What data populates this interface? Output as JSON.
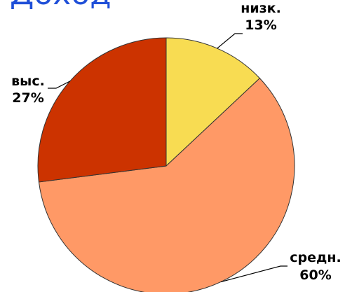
{
  "chart_data": {
    "type": "pie",
    "title": "Доход",
    "categories": [
      "низк.",
      "средн.",
      "выс."
    ],
    "values": [
      13,
      60,
      27
    ],
    "value_labels": [
      "13%",
      "60%",
      "27%"
    ],
    "colors": [
      "#f8dc52",
      "#ff9966",
      "#cc3300"
    ]
  }
}
